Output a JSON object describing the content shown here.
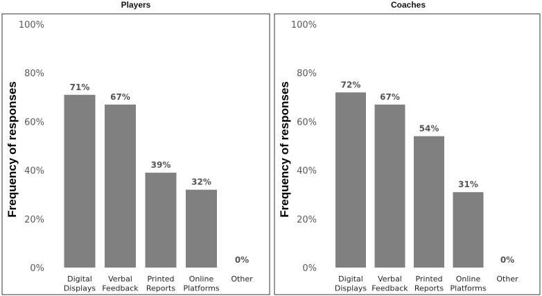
{
  "chart_data": [
    {
      "type": "bar",
      "title": "Players",
      "ylabel": "Frequency of responses",
      "ylim": [
        0,
        100
      ],
      "yticks": [
        "0%",
        "20%",
        "40%",
        "60%",
        "80%",
        "100%"
      ],
      "categories": [
        [
          "Digital",
          "Displays"
        ],
        [
          "Verbal",
          "Feedback"
        ],
        [
          "Printed",
          "Reports"
        ],
        [
          "Online",
          "Platforms"
        ],
        [
          "Other"
        ]
      ],
      "values": [
        71,
        67,
        39,
        32,
        0
      ],
      "data_labels": [
        "71%",
        "67%",
        "39%",
        "32%",
        "0%"
      ],
      "bar_color": "#808080",
      "grid": false,
      "legend": false
    },
    {
      "type": "bar",
      "title": "Coaches",
      "ylabel": "Frequency of responses",
      "ylim": [
        0,
        100
      ],
      "yticks": [
        "0%",
        "20%",
        "40%",
        "60%",
        "80%",
        "100%"
      ],
      "categories": [
        [
          "Digital",
          "Displays"
        ],
        [
          "Verbal",
          "Feedback"
        ],
        [
          "Printed",
          "Reports"
        ],
        [
          "Online",
          "Platforms"
        ],
        [
          "Other"
        ]
      ],
      "values": [
        72,
        67,
        54,
        31,
        0
      ],
      "data_labels": [
        "72%",
        "67%",
        "54%",
        "31%",
        "0%"
      ],
      "bar_color": "#808080",
      "grid": false,
      "legend": false
    }
  ]
}
